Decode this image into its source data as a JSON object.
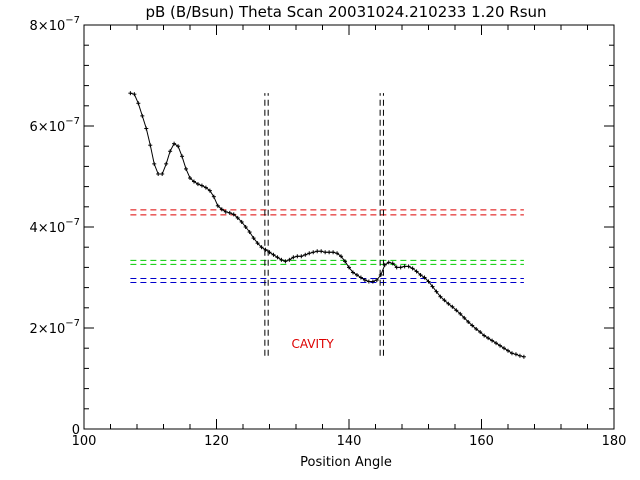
{
  "chart_data": {
    "type": "line",
    "title": "pB (B/Bsun) Theta Scan 20031024.210233 1.20 Rsun",
    "xlabel": "Position Angle",
    "ylabel": "",
    "xlim": [
      100,
      180
    ],
    "ylim": [
      0,
      8e-07
    ],
    "x_ticks": [
      100,
      120,
      140,
      160,
      180
    ],
    "x_tick_labels": [
      "100",
      "120",
      "140",
      "160",
      "180"
    ],
    "y_ticks": [
      0,
      2e-07,
      4e-07,
      6e-07,
      8e-07
    ],
    "y_tick_labels": [
      {
        "mant": "0",
        "exp": ""
      },
      {
        "mant": "2×10",
        "exp": "−7"
      },
      {
        "mant": "4×10",
        "exp": "−7"
      },
      {
        "mant": "6×10",
        "exp": "−7"
      },
      {
        "mant": "8×10",
        "exp": "−7"
      }
    ],
    "grid": false,
    "series": [
      {
        "color": "#000000",
        "marker": "plus",
        "x": [
          107.0,
          107.6,
          108.2,
          108.8,
          109.4,
          110.0,
          110.6,
          111.2,
          111.8,
          112.4,
          113.0,
          113.6,
          114.2,
          114.8,
          115.4,
          116.0,
          116.6,
          117.2,
          117.8,
          118.4,
          119.0,
          119.6,
          120.2,
          120.8,
          121.4,
          122.0,
          122.6,
          123.2,
          123.8,
          124.4,
          125.0,
          125.6,
          126.2,
          126.8,
          127.4,
          128.0,
          128.6,
          129.2,
          129.8,
          130.4,
          131.0,
          131.6,
          132.2,
          132.8,
          133.4,
          134.0,
          134.6,
          135.2,
          135.8,
          136.4,
          137.0,
          137.6,
          138.2,
          138.8,
          139.4,
          140.0,
          140.6,
          141.2,
          141.8,
          142.4,
          143.0,
          143.6,
          144.2,
          144.8,
          145.4,
          146.0,
          146.6,
          147.2,
          147.8,
          148.4,
          149.0,
          149.6,
          150.2,
          150.8,
          151.4,
          152.0,
          152.6,
          153.2,
          153.8,
          154.4,
          155.0,
          155.6,
          156.2,
          156.8,
          157.4,
          158.0,
          158.6,
          159.2,
          159.8,
          160.4,
          161.0,
          161.6,
          162.2,
          162.8,
          163.4,
          164.0,
          164.6,
          165.2,
          165.8,
          166.4
        ],
        "y": [
          6.65e-07,
          6.63e-07,
          6.45e-07,
          6.2e-07,
          5.95e-07,
          5.62e-07,
          5.25e-07,
          5.05e-07,
          5.05e-07,
          5.25e-07,
          5.5e-07,
          5.65e-07,
          5.6e-07,
          5.4e-07,
          5.15e-07,
          4.97e-07,
          4.9e-07,
          4.85e-07,
          4.82e-07,
          4.78e-07,
          4.72e-07,
          4.6e-07,
          4.42e-07,
          4.35e-07,
          4.3e-07,
          4.28e-07,
          4.25e-07,
          4.18e-07,
          4.1e-07,
          4e-07,
          3.9e-07,
          3.78e-07,
          3.68e-07,
          3.6e-07,
          3.55e-07,
          3.5e-07,
          3.45e-07,
          3.4e-07,
          3.35e-07,
          3.32e-07,
          3.35e-07,
          3.4e-07,
          3.42e-07,
          3.42e-07,
          3.45e-07,
          3.48e-07,
          3.5e-07,
          3.52e-07,
          3.52e-07,
          3.5e-07,
          3.5e-07,
          3.5e-07,
          3.48e-07,
          3.42e-07,
          3.32e-07,
          3.2e-07,
          3.1e-07,
          3.05e-07,
          3e-07,
          2.95e-07,
          2.92e-07,
          2.92e-07,
          2.95e-07,
          3.05e-07,
          3.25e-07,
          3.3e-07,
          3.28e-07,
          3.2e-07,
          3.2e-07,
          3.22e-07,
          3.22e-07,
          3.18e-07,
          3.12e-07,
          3.05e-07,
          3e-07,
          2.92e-07,
          2.82e-07,
          2.72e-07,
          2.62e-07,
          2.55e-07,
          2.48e-07,
          2.42e-07,
          2.35e-07,
          2.28e-07,
          2.2e-07,
          2.12e-07,
          2.05e-07,
          1.98e-07,
          1.92e-07,
          1.85e-07,
          1.8e-07,
          1.75e-07,
          1.7e-07,
          1.65e-07,
          1.6e-07,
          1.55e-07,
          1.5e-07,
          1.48e-07,
          1.45e-07,
          1.43e-07
        ]
      }
    ],
    "hlines": [
      {
        "y": 4.34e-07,
        "color": "#dd0000",
        "x": [
          107,
          166.4
        ],
        "style": "dashed"
      },
      {
        "y": 4.24e-07,
        "color": "#dd0000",
        "x": [
          107,
          166.4
        ],
        "style": "dashed"
      },
      {
        "y": 3.34e-07,
        "color": "#00cc00",
        "x": [
          107,
          166.4
        ],
        "style": "dashed"
      },
      {
        "y": 3.26e-07,
        "color": "#00cc00",
        "x": [
          107,
          166.4
        ],
        "style": "dashed"
      },
      {
        "y": 2.98e-07,
        "color": "#0000cc",
        "x": [
          107,
          166.4
        ],
        "style": "dashed"
      },
      {
        "y": 2.9e-07,
        "color": "#0000cc",
        "x": [
          107,
          166.4
        ],
        "style": "dashed"
      }
    ],
    "vlines": [
      {
        "x": 127.3,
        "color": "#000000",
        "y": [
          1.45e-07,
          6.65e-07
        ],
        "style": "dashed"
      },
      {
        "x": 127.8,
        "color": "#000000",
        "y": [
          1.45e-07,
          6.65e-07
        ],
        "style": "dashed"
      },
      {
        "x": 144.7,
        "color": "#000000",
        "y": [
          1.45e-07,
          6.65e-07
        ],
        "style": "dashed"
      },
      {
        "x": 145.2,
        "color": "#000000",
        "y": [
          1.45e-07,
          6.65e-07
        ],
        "style": "dashed"
      }
    ],
    "annotations": [
      {
        "text": "CAVITY",
        "x": 134.5,
        "y": 1.6e-07,
        "color": "#dd0000"
      }
    ]
  }
}
